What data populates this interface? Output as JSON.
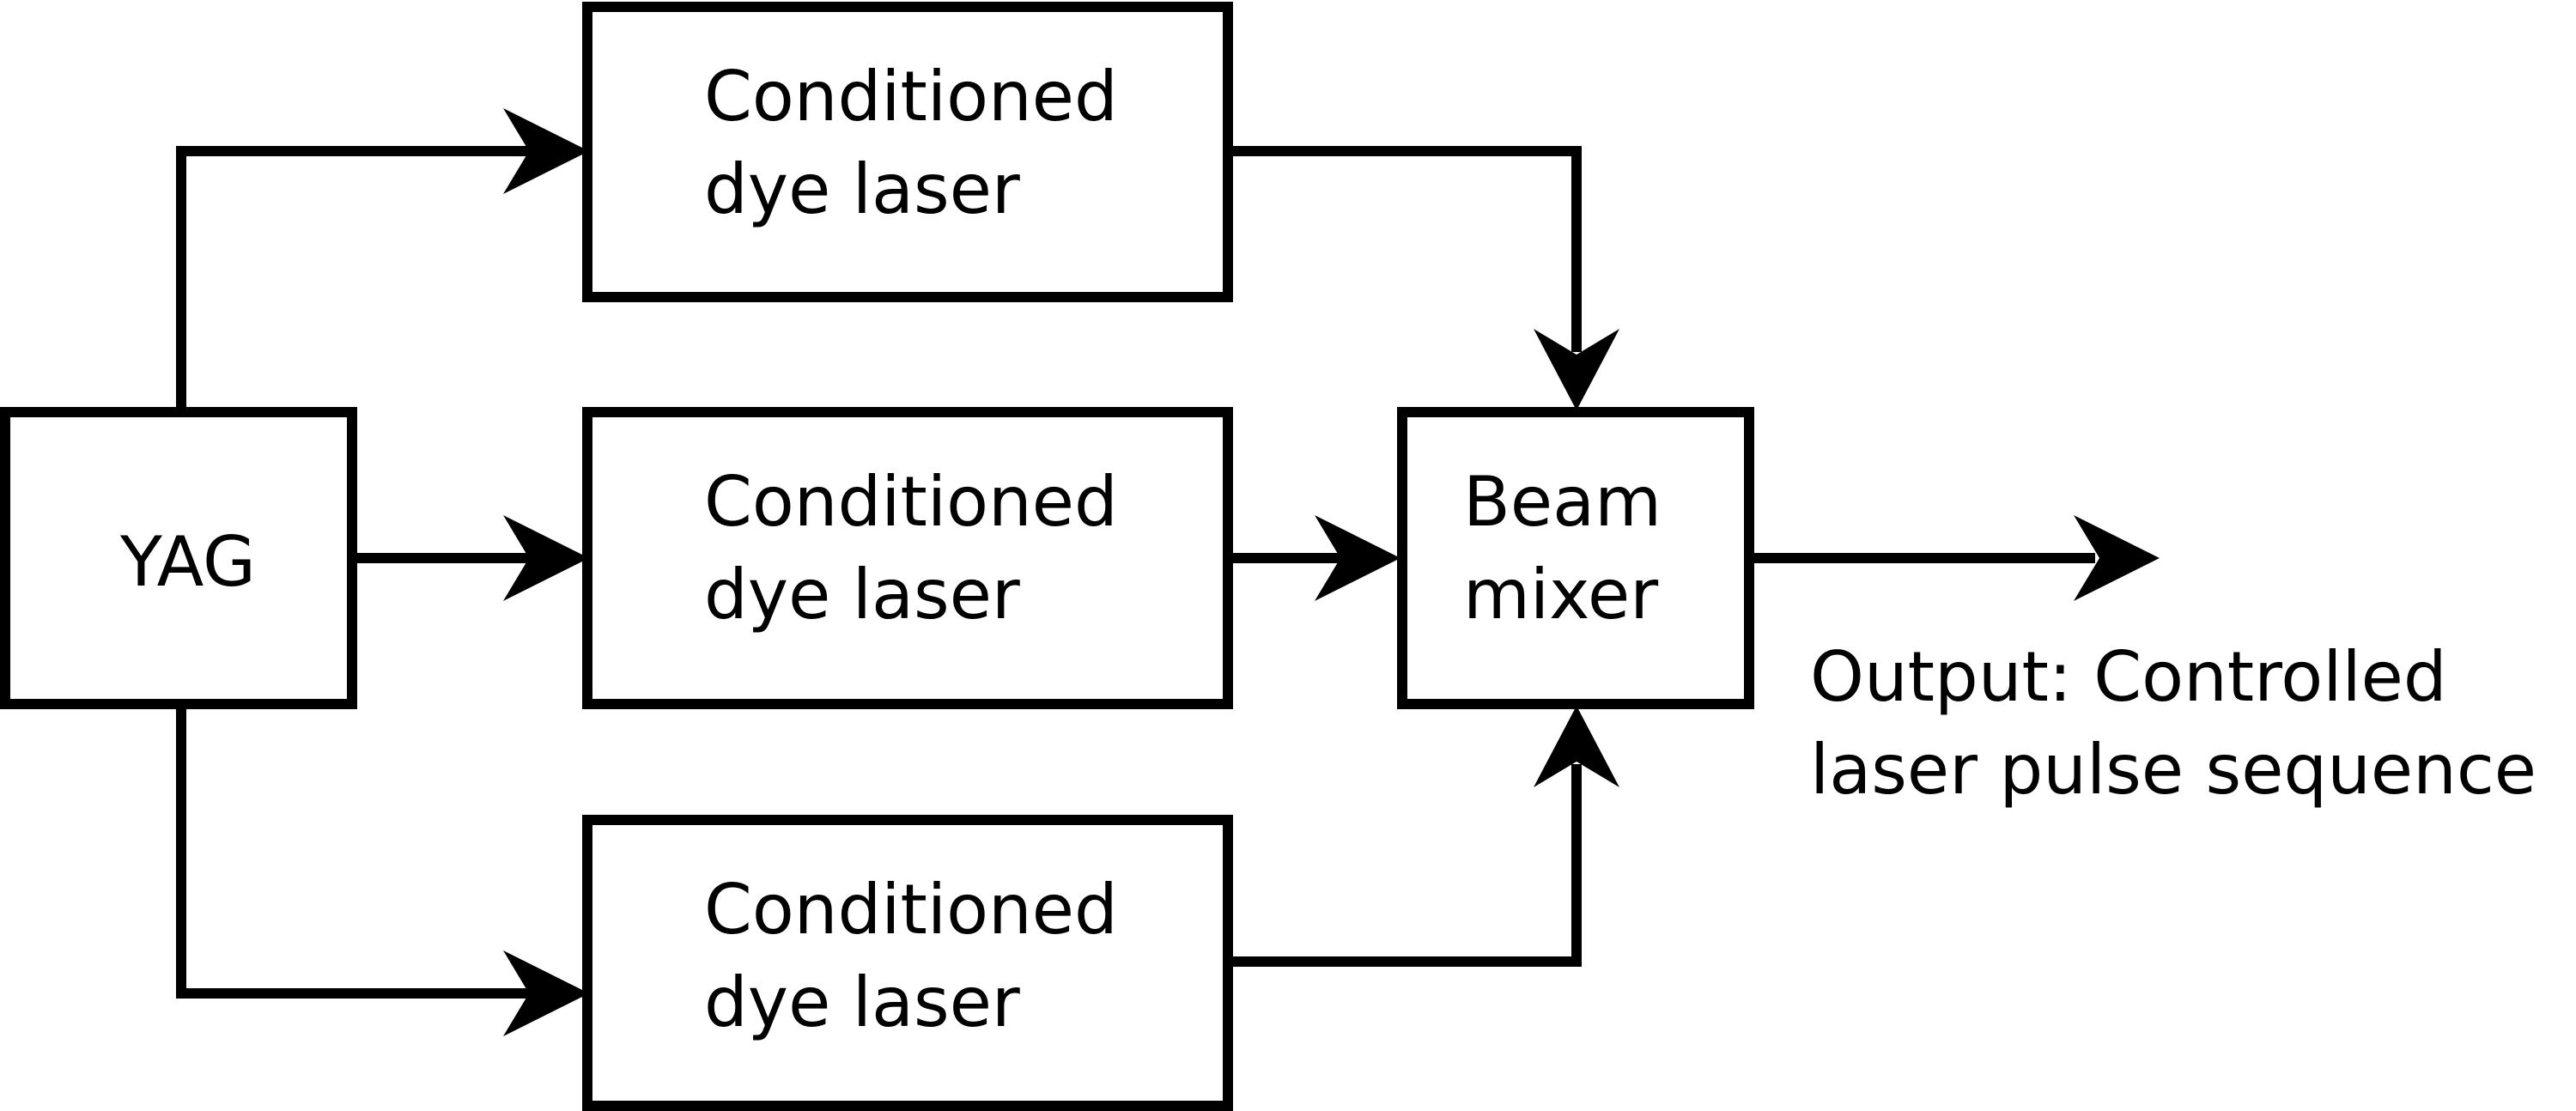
{
  "diagram": {
    "yag": "YAG",
    "laser_1": {
      "line1": "Conditioned",
      "line2": "dye laser"
    },
    "laser_2": {
      "line1": "Conditioned",
      "line2": "dye laser"
    },
    "laser_3": {
      "line1": "Conditioned",
      "line2": "dye laser"
    },
    "mixer": {
      "line1": "Beam",
      "line2": "mixer"
    },
    "output": {
      "line1": "Output: Controlled",
      "line2": "laser pulse sequence"
    }
  },
  "colors": {
    "stroke": "#000000",
    "background": "#ffffff"
  }
}
